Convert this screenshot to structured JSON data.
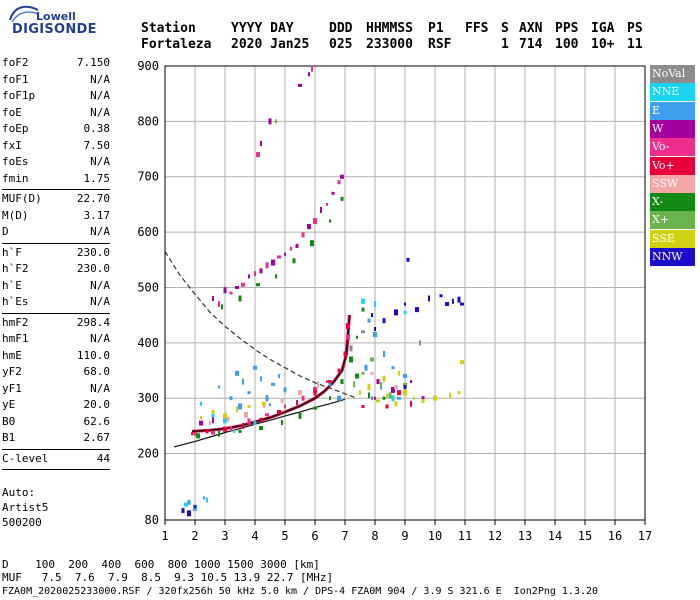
{
  "logo": {
    "top": "Lowell",
    "bottom": "DIGISONDE"
  },
  "header": {
    "station_label": "Station",
    "station_value": "Fortaleza",
    "date_label": "YYYY DAY",
    "date_value": "2020 Jan25",
    "ddd_label": "DDD",
    "ddd_value": "025",
    "time_label": "HHMMSS",
    "time_value": "233000",
    "p1_label": "P1",
    "p1_value": "RSF",
    "ffs_label": "FFS",
    "ffs_value": "",
    "s_label": "S",
    "s_value": "1",
    "axn_label": "AXN",
    "axn_value": "714",
    "pps_label": "PPS",
    "pps_value": "100",
    "iga_label": "IGA",
    "iga_value": "10+",
    "ps_label": "PS",
    "ps_value": "11"
  },
  "params": [
    {
      "label": "foF2",
      "value": "7.150"
    },
    {
      "label": "foF1",
      "value": "N/A"
    },
    {
      "label": "foF1p",
      "value": "N/A"
    },
    {
      "label": "foE",
      "value": "N/A"
    },
    {
      "label": "foEp",
      "value": "0.38"
    },
    {
      "label": "fxI",
      "value": "7.50"
    },
    {
      "label": "foEs",
      "value": "N/A"
    },
    {
      "label": "fmin",
      "value": "1.75"
    },
    {
      "label": "MUF(D)",
      "value": "22.70"
    },
    {
      "label": "M(D)",
      "value": "3.17"
    },
    {
      "label": "D",
      "value": "N/A"
    },
    {
      "label": "h`F",
      "value": "230.0"
    },
    {
      "label": "h`F2",
      "value": "230.0"
    },
    {
      "label": "h`E",
      "value": "N/A"
    },
    {
      "label": "h`Es",
      "value": "N/A"
    },
    {
      "label": "hmF2",
      "value": "298.4"
    },
    {
      "label": "hmF1",
      "value": "N/A"
    },
    {
      "label": "hmE",
      "value": "110.0"
    },
    {
      "label": "yF2",
      "value": "68.0"
    },
    {
      "label": "yF1",
      "value": "N/A"
    },
    {
      "label": "yE",
      "value": "20.0"
    },
    {
      "label": "B0",
      "value": "62.6"
    },
    {
      "label": "B1",
      "value": "2.67"
    },
    {
      "label": "C-level",
      "value": "44"
    }
  ],
  "autoscaling": {
    "line1": "Auto:",
    "line2": "Artist5",
    "line3": "500200"
  },
  "legend": [
    {
      "label": "NoVal",
      "color": "#8c8c8c"
    },
    {
      "label": "NNE",
      "color": "#19d3f0"
    },
    {
      "label": "E",
      "color": "#3f9fef"
    },
    {
      "label": "W",
      "color": "#a3009e"
    },
    {
      "label": "Vo-",
      "color": "#ee2e8c"
    },
    {
      "label": "Vo+",
      "color": "#e8003a"
    },
    {
      "label": "SSW",
      "color": "#f4a5a5"
    },
    {
      "label": "X-",
      "color": "#128a12"
    },
    {
      "label": "X+",
      "color": "#6bb34b"
    },
    {
      "label": "SSE",
      "color": "#d1d114"
    },
    {
      "label": "NNW",
      "color": "#1a0dcc"
    }
  ],
  "bottom": {
    "d_line": "D    100  200  400  600  800 1000 1500 3000 [km]",
    "muf_line": "MUF   7.5  7.6  7.9  8.5  9.3 10.5 13.9 22.7 [MHz]",
    "file_line": "FZA0M_2020025233000.RSF / 320fx256h 50 kHz 5.0 km / DPS-4 FZA0M 904 / 3.9 S 321.6 E  Ion2Png 1.3.20"
  },
  "chart_data": {
    "type": "scatter",
    "title": "",
    "xlabel": "",
    "ylabel": "",
    "xlim": [
      1,
      17
    ],
    "ylim": [
      80,
      900
    ],
    "x_ticks": [
      1,
      2,
      3,
      4,
      5,
      6,
      7,
      8,
      9,
      10,
      11,
      12,
      13,
      14,
      15,
      16,
      17
    ],
    "y_ticks": [
      80,
      200,
      300,
      400,
      500,
      600,
      700,
      800,
      900
    ],
    "grid": true,
    "series": [
      {
        "name": "E",
        "color": "#3f9fef",
        "points": [
          [
            2.8,
            320
          ],
          [
            3.2,
            300
          ],
          [
            3.4,
            345
          ],
          [
            3.6,
            330
          ],
          [
            3.8,
            310
          ],
          [
            4.0,
            355
          ],
          [
            4.2,
            335
          ],
          [
            4.4,
            300
          ],
          [
            4.6,
            325
          ],
          [
            4.8,
            340
          ],
          [
            5.0,
            315
          ],
          [
            3.5,
            285
          ],
          [
            4.5,
            288
          ],
          [
            7.8,
            440
          ],
          [
            8.0,
            415
          ],
          [
            8.3,
            380
          ],
          [
            8.6,
            355
          ],
          [
            9.0,
            340
          ],
          [
            8.2,
            320
          ],
          [
            7.7,
            355
          ],
          [
            8.8,
            300
          ],
          [
            7.9,
            300
          ],
          [
            1.8,
            112
          ],
          [
            2.0,
            102
          ],
          [
            2.3,
            120
          ],
          [
            6.5,
            325
          ],
          [
            6.8,
            300
          ]
        ]
      },
      {
        "name": "NNE",
        "color": "#19d3f0",
        "points": [
          [
            2.2,
            290
          ],
          [
            2.6,
            270
          ],
          [
            3.0,
            260
          ],
          [
            3.3,
            240
          ],
          [
            4.0,
            255
          ],
          [
            7.6,
            475
          ],
          [
            8.0,
            470
          ],
          [
            9.0,
            455
          ],
          [
            1.7,
            108
          ],
          [
            2.4,
            116
          ],
          [
            8.6,
            300
          ]
        ]
      },
      {
        "name": "W",
        "color": "#a3009e",
        "points": [
          [
            2.6,
            480
          ],
          [
            3.0,
            495
          ],
          [
            3.4,
            500
          ],
          [
            3.8,
            520
          ],
          [
            4.2,
            530
          ],
          [
            4.6,
            545
          ],
          [
            5.0,
            560
          ],
          [
            5.4,
            575
          ],
          [
            5.8,
            610
          ],
          [
            6.2,
            640
          ],
          [
            6.6,
            670
          ],
          [
            6.9,
            700
          ],
          [
            4.2,
            760
          ],
          [
            4.5,
            800
          ],
          [
            5.5,
            865
          ],
          [
            5.8,
            885
          ],
          [
            8.1,
            330
          ],
          [
            8.6,
            315
          ],
          [
            9.2,
            330
          ],
          [
            9.6,
            300
          ],
          [
            2.2,
            255
          ],
          [
            2.6,
            260
          ]
        ]
      },
      {
        "name": "Vo-",
        "color": "#ee2e8c",
        "points": [
          [
            2.8,
            470
          ],
          [
            3.2,
            490
          ],
          [
            3.6,
            505
          ],
          [
            4.0,
            525
          ],
          [
            4.4,
            540
          ],
          [
            4.8,
            555
          ],
          [
            5.2,
            570
          ],
          [
            5.6,
            595
          ],
          [
            6.0,
            620
          ],
          [
            6.4,
            650
          ],
          [
            6.8,
            690
          ],
          [
            4.1,
            740
          ],
          [
            5.9,
            895
          ],
          [
            2.0,
            235
          ],
          [
            2.6,
            238
          ],
          [
            3.2,
            245
          ],
          [
            3.8,
            258
          ],
          [
            4.4,
            270
          ],
          [
            5.0,
            285
          ],
          [
            5.6,
            300
          ],
          [
            6.0,
            315
          ],
          [
            6.4,
            330
          ],
          [
            6.8,
            350
          ],
          [
            7.1,
            410
          ]
        ]
      },
      {
        "name": "Vo+",
        "color": "#e8003a",
        "points": [
          [
            1.9,
            236
          ],
          [
            2.4,
            240
          ],
          [
            3.0,
            244
          ],
          [
            3.6,
            250
          ],
          [
            4.2,
            262
          ],
          [
            4.8,
            275
          ],
          [
            5.4,
            292
          ],
          [
            6.0,
            310
          ],
          [
            6.5,
            330
          ],
          [
            6.8,
            350
          ],
          [
            7.0,
            380
          ],
          [
            7.1,
            430
          ],
          [
            8.0,
            300
          ],
          [
            8.4,
            285
          ],
          [
            8.8,
            310
          ],
          [
            9.2,
            290
          ],
          [
            7.6,
            285
          ]
        ]
      },
      {
        "name": "SSW",
        "color": "#f4a5a5",
        "points": [
          [
            2.5,
            255
          ],
          [
            3.1,
            262
          ],
          [
            3.7,
            270
          ],
          [
            4.3,
            285
          ],
          [
            4.9,
            295
          ],
          [
            5.5,
            310
          ],
          [
            6.1,
            325
          ],
          [
            7.9,
            345
          ],
          [
            8.7,
            320
          ]
        ]
      },
      {
        "name": "X-",
        "color": "#128a12",
        "points": [
          [
            2.9,
            465
          ],
          [
            3.5,
            480
          ],
          [
            4.1,
            505
          ],
          [
            4.7,
            520
          ],
          [
            5.3,
            548
          ],
          [
            5.9,
            580
          ],
          [
            6.5,
            620
          ],
          [
            6.9,
            660
          ],
          [
            2.1,
            232
          ],
          [
            2.8,
            236
          ],
          [
            3.5,
            240
          ],
          [
            4.2,
            246
          ],
          [
            4.9,
            256
          ],
          [
            5.5,
            268
          ],
          [
            6.0,
            282
          ],
          [
            6.5,
            300
          ],
          [
            6.9,
            330
          ],
          [
            7.2,
            370
          ],
          [
            7.4,
            410
          ],
          [
            7.6,
            460
          ],
          [
            7.4,
            340
          ],
          [
            7.8,
            305
          ],
          [
            8.3,
            300
          ]
        ]
      },
      {
        "name": "X+",
        "color": "#6bb34b",
        "points": [
          [
            7.3,
            325
          ],
          [
            7.6,
            345
          ],
          [
            7.9,
            370
          ],
          [
            8.2,
            325
          ],
          [
            8.5,
            305
          ],
          [
            9.0,
            325
          ],
          [
            4.7,
            800
          ]
        ]
      },
      {
        "name": "SSE",
        "color": "#d1d114",
        "points": [
          [
            2.2,
            265
          ],
          [
            2.6,
            275
          ],
          [
            3.0,
            268
          ],
          [
            3.4,
            280
          ],
          [
            3.8,
            285
          ],
          [
            4.3,
            290
          ],
          [
            7.5,
            310
          ],
          [
            7.8,
            320
          ],
          [
            8.1,
            295
          ],
          [
            8.4,
            305
          ],
          [
            8.7,
            290
          ],
          [
            9.0,
            310
          ],
          [
            9.3,
            300
          ],
          [
            9.6,
            295
          ],
          [
            10.0,
            300
          ],
          [
            10.5,
            305
          ],
          [
            10.8,
            310
          ],
          [
            10.9,
            365
          ],
          [
            8.8,
            345
          ],
          [
            8.3,
            335
          ]
        ]
      },
      {
        "name": "NNW",
        "color": "#1a0dcc",
        "points": [
          [
            7.9,
            450
          ],
          [
            8.3,
            440
          ],
          [
            8.7,
            455
          ],
          [
            9.0,
            470
          ],
          [
            9.1,
            550
          ],
          [
            9.4,
            460
          ],
          [
            9.8,
            480
          ],
          [
            10.2,
            485
          ],
          [
            10.4,
            470
          ],
          [
            10.6,
            475
          ],
          [
            10.8,
            478
          ],
          [
            10.9,
            470
          ],
          [
            8.0,
            425
          ],
          [
            1.6,
            97
          ],
          [
            1.8,
            92
          ],
          [
            2.0,
            104
          ],
          [
            9.0,
            320
          ]
        ]
      },
      {
        "name": "NoVal",
        "color": "#8c8c8c",
        "points": [
          [
            9.5,
            400
          ],
          [
            7.2,
            390
          ],
          [
            7.6,
            420
          ]
        ]
      }
    ],
    "profile_curve": {
      "x": [
        1.3,
        2,
        2.5,
        3,
        3.5,
        4,
        4.5,
        5,
        5.5,
        6,
        6.5,
        7
      ],
      "y": [
        212,
        222,
        230,
        238,
        245,
        253,
        260,
        268,
        275,
        283,
        290,
        298
      ]
    },
    "dashed_curve": {
      "x": [
        1,
        1.5,
        2,
        2.5,
        3,
        3.5,
        4,
        4.5,
        5,
        5.5,
        6,
        6.5,
        7,
        7.4
      ],
      "y": [
        565,
        522,
        488,
        455,
        430,
        408,
        388,
        370,
        355,
        340,
        328,
        318,
        308,
        300
      ]
    },
    "trace_curve": {
      "x": [
        1.9,
        2.5,
        3,
        3.5,
        4,
        4.5,
        5,
        5.5,
        6,
        6.3,
        6.6,
        6.9,
        7.05,
        7.15
      ],
      "y": [
        240,
        242,
        245,
        250,
        257,
        265,
        275,
        286,
        300,
        312,
        328,
        350,
        380,
        450
      ]
    }
  }
}
